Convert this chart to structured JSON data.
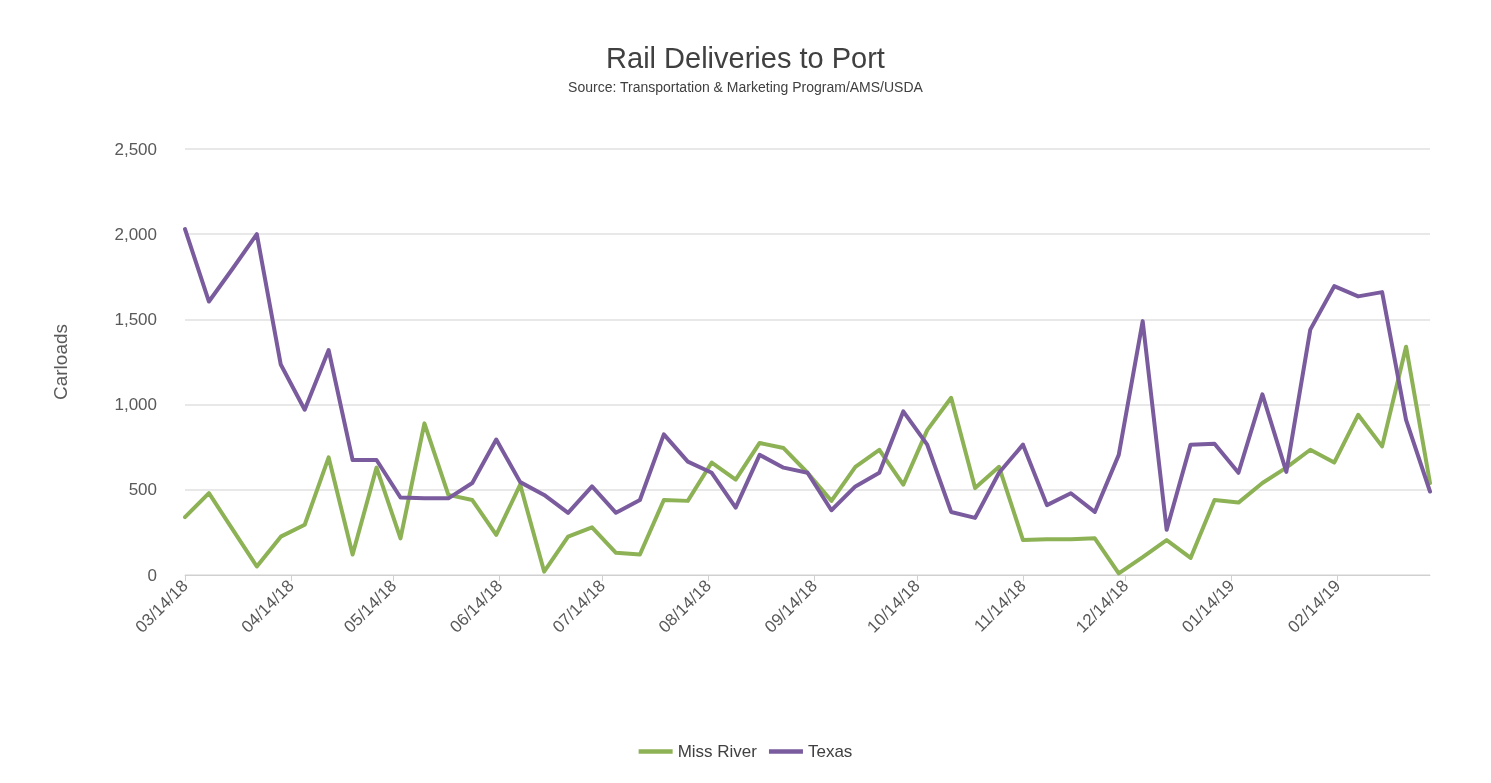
{
  "chart_data": {
    "type": "line",
    "title": "Rail Deliveries to Port",
    "subtitle": "Source: Transportation & Marketing Program/AMS/USDA",
    "ylabel": "Carloads",
    "x": [
      "2018-03-14",
      "2018-03-21",
      "2018-03-28",
      "2018-04-04",
      "2018-04-11",
      "2018-04-18",
      "2018-04-25",
      "2018-05-02",
      "2018-05-09",
      "2018-05-16",
      "2018-05-23",
      "2018-05-30",
      "2018-06-06",
      "2018-06-13",
      "2018-06-20",
      "2018-06-27",
      "2018-07-04",
      "2018-07-11",
      "2018-07-18",
      "2018-07-25",
      "2018-08-01",
      "2018-08-08",
      "2018-08-15",
      "2018-08-22",
      "2018-08-29",
      "2018-09-05",
      "2018-09-12",
      "2018-09-19",
      "2018-09-26",
      "2018-10-03",
      "2018-10-10",
      "2018-10-17",
      "2018-10-24",
      "2018-10-31",
      "2018-11-07",
      "2018-11-14",
      "2018-11-21",
      "2018-11-28",
      "2018-12-05",
      "2018-12-12",
      "2018-12-19",
      "2018-12-26",
      "2019-01-02",
      "2019-01-09",
      "2019-01-16",
      "2019-01-23",
      "2019-01-30",
      "2019-02-06",
      "2019-02-13",
      "2019-02-20",
      "2019-02-27",
      "2019-03-06",
      "2019-03-13"
    ],
    "series": [
      {
        "name": "Miss River",
        "color": "#8db255",
        "values": [
          340,
          480,
          265,
          50,
          225,
          295,
          690,
          120,
          630,
          215,
          890,
          470,
          440,
          235,
          530,
          20,
          225,
          280,
          130,
          120,
          440,
          435,
          660,
          560,
          775,
          745,
          600,
          435,
          635,
          735,
          530,
          850,
          1040,
          510,
          635,
          205,
          210,
          210,
          215,
          10,
          105,
          205,
          100,
          440,
          425,
          540,
          630,
          735,
          660,
          940,
          755,
          1340,
          540
        ]
      },
      {
        "name": "Texas",
        "color": "#7a5c9e",
        "values": [
          2030,
          1605,
          1800,
          2000,
          1235,
          970,
          1320,
          675,
          675,
          455,
          450,
          450,
          540,
          795,
          545,
          470,
          365,
          520,
          365,
          440,
          825,
          665,
          600,
          395,
          705,
          630,
          600,
          380,
          520,
          600,
          960,
          765,
          370,
          335,
          600,
          765,
          410,
          480,
          370,
          705,
          1490,
          265,
          765,
          770,
          600,
          1060,
          605,
          1440,
          1695,
          1635,
          1660,
          910,
          490
        ]
      }
    ],
    "xlim": [
      "2018-03-14",
      "2019-03-13"
    ],
    "xticks": [
      {
        "value": "2018-03-14",
        "label": "03/14/18"
      },
      {
        "value": "2018-04-14",
        "label": "04/14/18"
      },
      {
        "value": "2018-05-14",
        "label": "05/14/18"
      },
      {
        "value": "2018-06-14",
        "label": "06/14/18"
      },
      {
        "value": "2018-07-14",
        "label": "07/14/18"
      },
      {
        "value": "2018-08-14",
        "label": "08/14/18"
      },
      {
        "value": "2018-09-14",
        "label": "09/14/18"
      },
      {
        "value": "2018-10-14",
        "label": "10/14/18"
      },
      {
        "value": "2018-11-14",
        "label": "11/14/18"
      },
      {
        "value": "2018-12-14",
        "label": "12/14/18"
      },
      {
        "value": "2019-01-14",
        "label": "01/14/19"
      },
      {
        "value": "2019-02-14",
        "label": "02/14/19"
      }
    ],
    "ylim": [
      0,
      2500
    ],
    "yticks": [
      {
        "value": 0,
        "label": "0"
      },
      {
        "value": 500,
        "label": "500"
      },
      {
        "value": 1000,
        "label": "1,000"
      },
      {
        "value": 1500,
        "label": "1,500"
      },
      {
        "value": 2000,
        "label": "2,000"
      },
      {
        "value": 2500,
        "label": "2,500"
      }
    ],
    "grid": "y",
    "legend": "bottom",
    "marker": "none",
    "line_style": "solid"
  }
}
